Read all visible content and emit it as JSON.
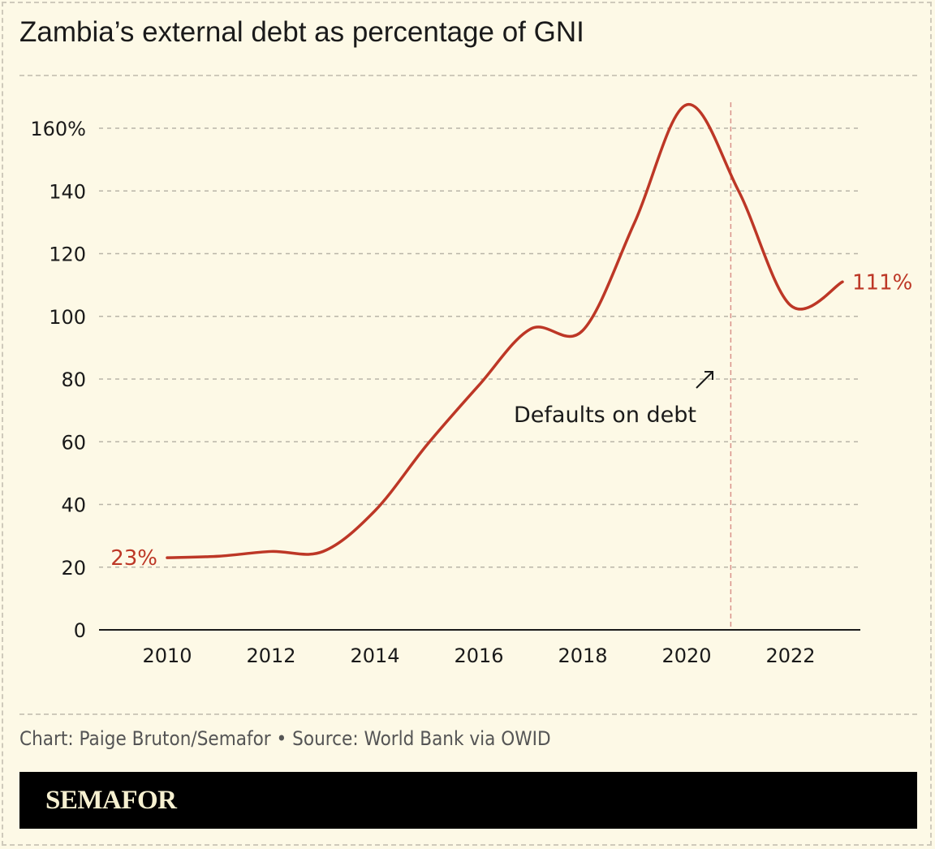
{
  "title": "Zambia’s external debt as percentage of GNI",
  "credit": "Chart: Paige Bruton/Semafor • Source: World Bank via OWID",
  "brand": "SEMAFOR",
  "colors": {
    "background": "#fdf9e6",
    "line": "#bd3726",
    "event_line": "#d9928a",
    "text": "#1a1a1a"
  },
  "chart_data": {
    "type": "line",
    "title": "Zambia’s external debt as percentage of GNI",
    "x": [
      2010,
      2011,
      2012,
      2013,
      2014,
      2015,
      2016,
      2017,
      2018,
      2019,
      2020,
      2021,
      2022,
      2023
    ],
    "values": [
      23,
      23.5,
      25,
      25,
      38,
      59,
      78,
      96,
      95.5,
      130,
      167.5,
      140,
      103.5,
      111
    ],
    "xlim": [
      2008.5,
      2024.3
    ],
    "ylim": [
      0,
      170
    ],
    "x_ticks": [
      2010,
      2012,
      2014,
      2016,
      2018,
      2020,
      2022
    ],
    "y_ticks": [
      0,
      20,
      40,
      60,
      80,
      100,
      120,
      140,
      160
    ],
    "y_tick_labels": [
      "0",
      "20",
      "40",
      "60",
      "80",
      "100",
      "120",
      "140",
      "160%"
    ],
    "grid": "horizontal dashed",
    "start_label": "23%",
    "end_label": "111%",
    "annotation": {
      "text": "Defaults on debt",
      "x": 2020.85
    }
  }
}
